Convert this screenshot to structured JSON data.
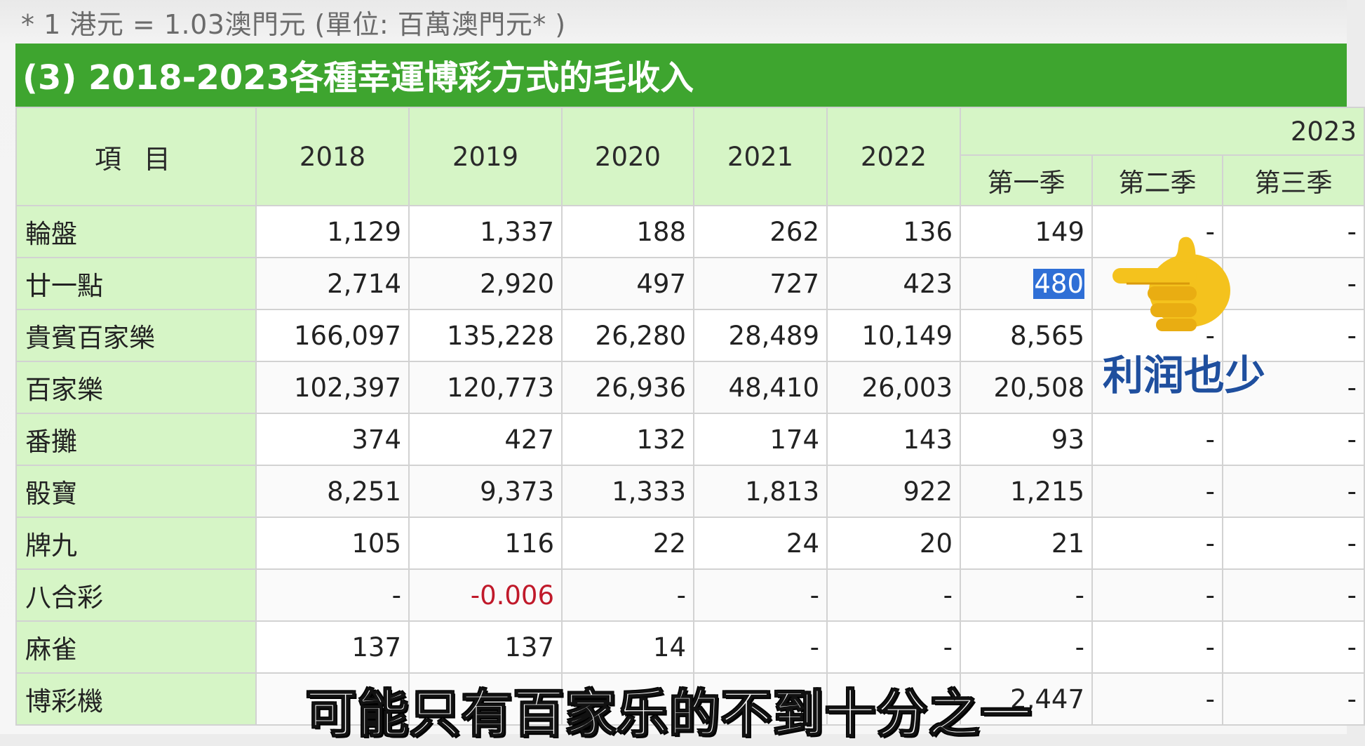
{
  "note": "* 1 港元 = 1.03澳門元 (單位: 百萬澳門元*  )",
  "title": "(3) 2018-2023各種幸運博彩方式的毛收入",
  "header": {
    "item": "項 目",
    "years": [
      "2018",
      "2019",
      "2020",
      "2021",
      "2022"
    ],
    "group_year": "2023",
    "quarters": [
      "第一季",
      "第二季",
      "第三季"
    ]
  },
  "rows": [
    {
      "label": "輪盤",
      "values": [
        "1,129",
        "1,337",
        "188",
        "262",
        "136",
        "149",
        "-",
        "-"
      ]
    },
    {
      "label": "廿一點",
      "values": [
        "2,714",
        "2,920",
        "497",
        "727",
        "423",
        "480",
        "-",
        "-"
      ]
    },
    {
      "label": "貴賓百家樂",
      "values": [
        "166,097",
        "135,228",
        "26,280",
        "28,489",
        "10,149",
        "8,565",
        "-",
        "-"
      ]
    },
    {
      "label": "百家樂",
      "values": [
        "102,397",
        "120,773",
        "26,936",
        "48,410",
        "26,003",
        "20,508",
        "-",
        "-"
      ]
    },
    {
      "label": "番攤",
      "values": [
        "374",
        "427",
        "132",
        "174",
        "143",
        "93",
        "-",
        "-"
      ]
    },
    {
      "label": "骰寶",
      "values": [
        "8,251",
        "9,373",
        "1,333",
        "1,813",
        "922",
        "1,215",
        "-",
        "-"
      ]
    },
    {
      "label": "牌九",
      "values": [
        "105",
        "116",
        "22",
        "24",
        "20",
        "21",
        "-",
        "-"
      ]
    },
    {
      "label": "八合彩",
      "values": [
        "-",
        "-0.006",
        "-",
        "-",
        "-",
        "-",
        "-",
        "-"
      ]
    },
    {
      "label": "麻雀",
      "values": [
        "137",
        "137",
        "14",
        "-",
        "-",
        "-",
        "-",
        "-"
      ]
    },
    {
      "label": "博彩機",
      "values": [
        "",
        "",
        "",
        "",
        "",
        "2,447",
        "-",
        "-"
      ]
    }
  ],
  "side_caption": "利润也少",
  "subtitle": "可能只有百家乐的不到十分之一",
  "colors": {
    "title_bg": "#3ea52f",
    "header_bg": "#d6f5c6",
    "negative": "#c0192a",
    "highlight": "#2f6fd6",
    "caption": "#1f4f9e"
  },
  "icons": {
    "pointer": "pointing-hand-icon"
  }
}
